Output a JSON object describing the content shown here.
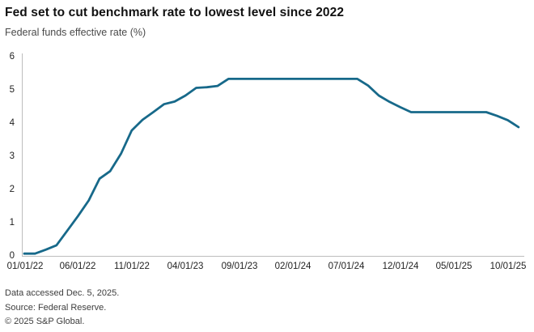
{
  "header": {
    "title": "Fed set to cut benchmark rate to lowest level since 2022",
    "subtitle": "Federal funds effective rate (%)"
  },
  "chart_data": {
    "type": "line",
    "title": "Fed set to cut benchmark rate to lowest level since 2022",
    "subtitle": "Federal funds effective rate (%)",
    "xlabel": "",
    "ylabel": "Federal funds effective rate (%)",
    "ylim": [
      0,
      6
    ],
    "y_ticks": [
      0,
      1,
      2,
      3,
      4,
      5,
      6
    ],
    "x_tick_labels": [
      "01/01/22",
      "06/01/22",
      "11/01/22",
      "04/01/23",
      "09/01/23",
      "02/01/24",
      "07/01/24",
      "12/01/24",
      "05/01/25",
      "10/01/25"
    ],
    "grid": false,
    "legend_position": "none",
    "line_color": "#17698a",
    "axis_color": "#bdbdbd",
    "x_interval": "monthly",
    "x": [
      "2022-01",
      "2022-02",
      "2022-03",
      "2022-04",
      "2022-05",
      "2022-06",
      "2022-07",
      "2022-08",
      "2022-09",
      "2022-10",
      "2022-11",
      "2022-12",
      "2023-01",
      "2023-02",
      "2023-03",
      "2023-04",
      "2023-05",
      "2023-06",
      "2023-07",
      "2023-08",
      "2023-09",
      "2023-10",
      "2023-11",
      "2023-12",
      "2024-01",
      "2024-02",
      "2024-03",
      "2024-04",
      "2024-05",
      "2024-06",
      "2024-07",
      "2024-08",
      "2024-09",
      "2024-10",
      "2024-11",
      "2024-12",
      "2025-01",
      "2025-02",
      "2025-03",
      "2025-04",
      "2025-05",
      "2025-06",
      "2025-07",
      "2025-08",
      "2025-09",
      "2025-10",
      "2025-11"
    ],
    "series": [
      {
        "name": "Federal funds effective rate (%)",
        "values": [
          0.08,
          0.08,
          0.2,
          0.33,
          0.77,
          1.21,
          1.68,
          2.33,
          2.56,
          3.08,
          3.78,
          4.1,
          4.33,
          4.57,
          4.65,
          4.83,
          5.06,
          5.08,
          5.12,
          5.33,
          5.33,
          5.33,
          5.33,
          5.33,
          5.33,
          5.33,
          5.33,
          5.33,
          5.33,
          5.33,
          5.33,
          5.33,
          5.13,
          4.83,
          4.64,
          4.48,
          4.33,
          4.33,
          4.33,
          4.33,
          4.33,
          4.33,
          4.33,
          4.33,
          4.22,
          4.09,
          3.88
        ]
      }
    ]
  },
  "footer": {
    "data_accessed": "Data accessed Dec. 5, 2025.",
    "source": "Source: Federal Reserve.",
    "copyright": "© 2025 S&P Global."
  }
}
